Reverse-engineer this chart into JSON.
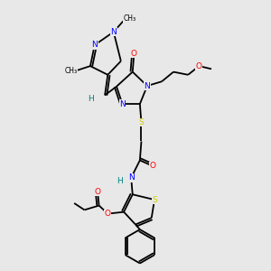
{
  "bg_color": "#e8e8e8",
  "colors": {
    "N": "#0000ff",
    "O": "#ff0000",
    "S": "#cccc00",
    "H": "#008080",
    "C": "#000000"
  },
  "figsize": [
    3.0,
    3.0
  ],
  "dpi": 100
}
